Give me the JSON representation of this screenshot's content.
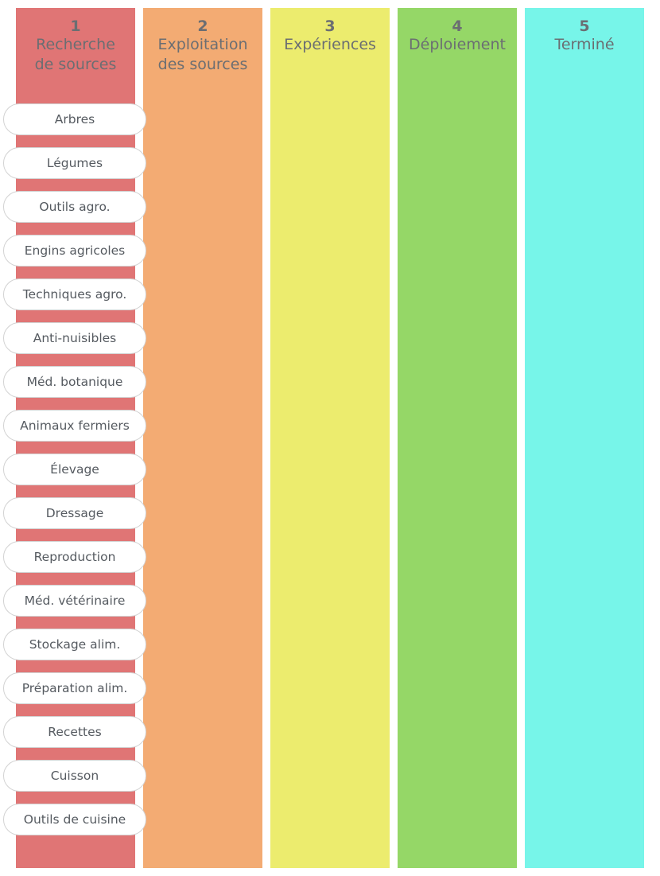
{
  "columns": [
    {
      "number": "1",
      "title": "Recherche\nde sources",
      "color": "#e07575"
    },
    {
      "number": "2",
      "title": "Exploitation\ndes sources",
      "color": "#f3ab73"
    },
    {
      "number": "3",
      "title": "Expériences",
      "color": "#ecec6e"
    },
    {
      "number": "4",
      "title": "Déploiement",
      "color": "#95d767"
    },
    {
      "number": "5",
      "title": "Terminé",
      "color": "#77f5e9"
    }
  ],
  "cards": [
    "Arbres",
    "Légumes",
    "Outils agro.",
    "Engins agricoles",
    "Techniques agro.",
    "Anti-nuisibles",
    "Méd. botanique",
    "Animaux fermiers",
    "Élevage",
    "Dressage",
    "Reproduction",
    "Méd. vétérinaire",
    "Stockage alim.",
    "Préparation alim.",
    "Recettes",
    "Cuisson",
    "Outils de cuisine"
  ]
}
